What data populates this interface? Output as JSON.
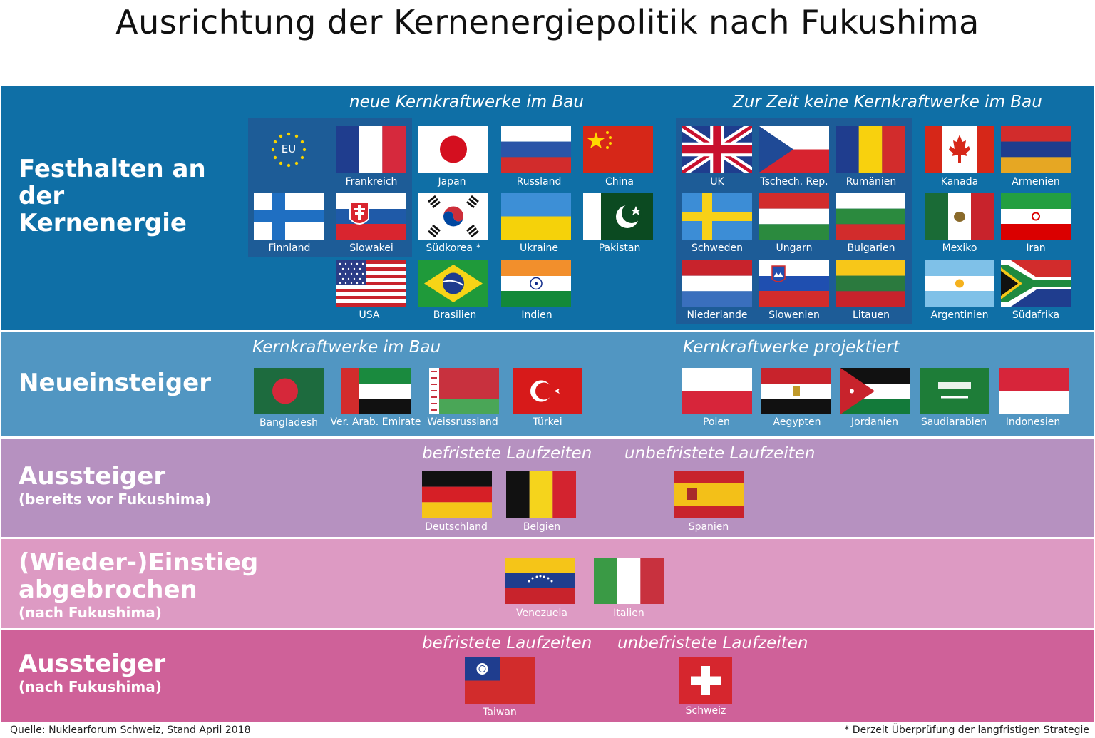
{
  "title": "Ausrichtung der Kernenergiepolitik nach Fukushima",
  "bands": {
    "b1": {
      "label": "Festhalten an der Kernenergie",
      "left_heading": "neue Kernkraftwerke im Bau",
      "right_heading": "Zur Zeit keine Kernkraftwerke im Bau"
    },
    "b2": {
      "label": "Neueinsteiger",
      "left_heading": "Kernkraftwerke im Bau",
      "right_heading": "Kernkraftwerke projektiert"
    },
    "b3": {
      "label": "Aussteiger",
      "sub": "(bereits vor Fukushima)",
      "left_heading": "befristete Laufzeiten",
      "right_heading": "unbefristete Laufzeiten"
    },
    "b4": {
      "label": "(Wieder-)Einstieg abgebrochen",
      "sub": "(nach Fukushima)"
    },
    "b5": {
      "label": "Aussteiger",
      "sub": "(nach Fukushima)",
      "left_heading": "befristete Laufzeiten",
      "right_heading": "unbefristete Laufzeiten"
    }
  },
  "flags": {
    "eu": {
      "name": "",
      "text": "EU"
    },
    "fr": {
      "name": "Frankreich"
    },
    "jp": {
      "name": "Japan"
    },
    "ru": {
      "name": "Russland"
    },
    "cn": {
      "name": "China"
    },
    "fi": {
      "name": "Finnland"
    },
    "sk": {
      "name": "Slowakei"
    },
    "kr": {
      "name": "Südkorea *"
    },
    "ua": {
      "name": "Ukraine"
    },
    "pk": {
      "name": "Pakistan"
    },
    "us": {
      "name": "USA"
    },
    "br": {
      "name": "Brasilien"
    },
    "in": {
      "name": "Indien"
    },
    "uk": {
      "name": "UK"
    },
    "cz": {
      "name": "Tschech. Rep."
    },
    "ro": {
      "name": "Rumänien"
    },
    "ca": {
      "name": "Kanada"
    },
    "am": {
      "name": "Armenien"
    },
    "se": {
      "name": "Schweden"
    },
    "hu": {
      "name": "Ungarn"
    },
    "bg": {
      "name": "Bulgarien"
    },
    "mx": {
      "name": "Mexiko"
    },
    "ir": {
      "name": "Iran"
    },
    "nl": {
      "name": "Niederlande"
    },
    "si": {
      "name": "Slowenien"
    },
    "lt": {
      "name": "Litauen"
    },
    "ar": {
      "name": "Argentinien"
    },
    "za": {
      "name": "Südafrika"
    },
    "bd": {
      "name": "Bangladesh"
    },
    "ae": {
      "name": "Ver. Arab. Emirate"
    },
    "by": {
      "name": "Weissrussland"
    },
    "tr": {
      "name": "Türkei"
    },
    "pl": {
      "name": "Polen"
    },
    "eg": {
      "name": "Aegypten"
    },
    "jo": {
      "name": "Jordanien"
    },
    "sa": {
      "name": "Saudiarabien"
    },
    "id": {
      "name": "Indonesien"
    },
    "de": {
      "name": "Deutschland"
    },
    "be": {
      "name": "Belgien"
    },
    "es": {
      "name": "Spanien"
    },
    "ve": {
      "name": "Venezuela"
    },
    "it": {
      "name": "Italien"
    },
    "tw": {
      "name": "Taiwan"
    },
    "ch": {
      "name": "Schweiz"
    }
  },
  "footer": {
    "source": "Quelle: Nuklearforum Schweiz, Stand April 2018",
    "note": "* Derzeit Überprüfung der langfristigen Strategie"
  },
  "colors": {
    "band1": "#0f6fa6",
    "band2": "#5196c2",
    "band3": "#b691c0",
    "band4": "#dd9ac3",
    "band5": "#cf6199",
    "panel": "#1d5c97"
  }
}
